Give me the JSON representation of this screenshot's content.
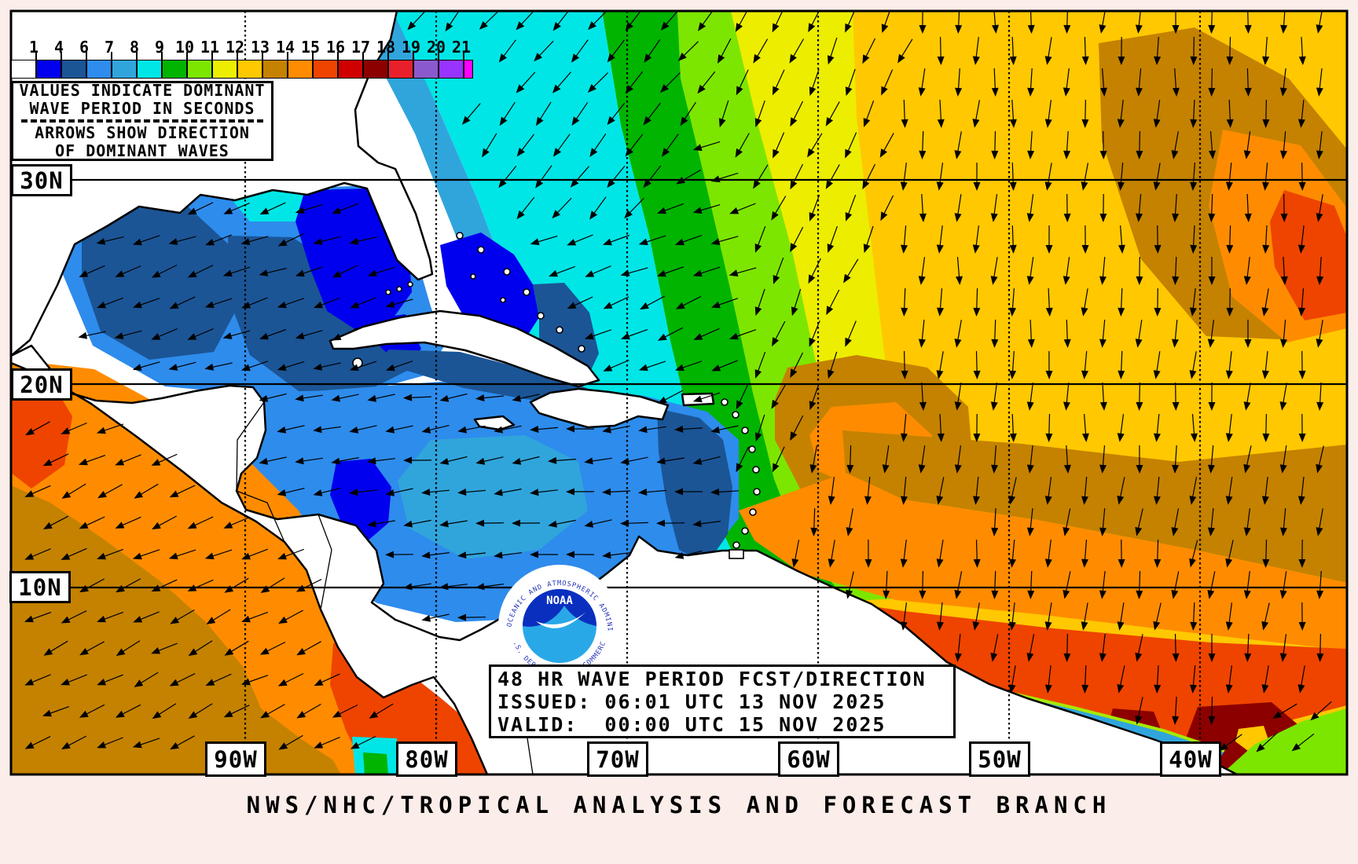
{
  "scale": {
    "values": [
      1,
      4,
      6,
      7,
      8,
      9,
      10,
      11,
      12,
      13,
      14,
      15,
      16,
      17,
      18,
      19,
      20,
      21
    ],
    "colors": [
      "#FFFFFF",
      "#0000EE",
      "#1B5596",
      "#2E8CEC",
      "#30A5DC",
      "#00E6E6",
      "#00B400",
      "#7DE600",
      "#EDED00",
      "#FFC800",
      "#C48200",
      "#FF8C00",
      "#EE4400",
      "#D00000",
      "#8C0000",
      "#E8202C",
      "#8A5ACC",
      "#9933FF"
    ],
    "overflow_color": "#FF00FF",
    "note": {
      "line1": "VALUES INDICATE DOMINANT",
      "line2": "WAVE PERIOD IN SECONDS",
      "line3": "ARROWS SHOW DIRECTION",
      "line4": "OF DOMINANT WAVES"
    }
  },
  "grid": {
    "lat_labels": [
      "30N",
      "20N",
      "10N"
    ],
    "lon_labels": [
      "90W",
      "80W",
      "70W",
      "60W",
      "50W",
      "40W"
    ]
  },
  "info_box": {
    "line1": "48 HR WAVE PERIOD FCST/DIRECTION",
    "line2": "ISSUED: 06:01 UTC 13 NOV 2025",
    "line3": "VALID:  00:00 UTC 15 NOV 2025"
  },
  "footer": {
    "title": "NWS/NHC/TROPICAL ANALYSIS AND FORECAST BRANCH"
  },
  "logo": {
    "acronym": "NOAA",
    "ring_top": "NATIONAL OCEANIC AND ATMOSPHERIC ADMINISTRATION",
    "ring_bottom": "U.S. DEPARTMENT OF COMMERCE"
  },
  "palette": {
    "white": "#FFFFFF",
    "blue": "#0000EE",
    "navy": "#1B5596",
    "dodger": "#2E8CEC",
    "steel": "#30A5DC",
    "cyan": "#00E6E6",
    "green": "#00B400",
    "chartreuse": "#7DE600",
    "yellow": "#EDED00",
    "gold": "#FFC800",
    "darkgold": "#C48200",
    "orange": "#FF8C00",
    "orangered": "#EE4400",
    "red": "#D00000",
    "darkred": "#8C0000",
    "crimson": "#E8202C",
    "purple": "#8A5ACC",
    "violet": "#9933FF",
    "magenta": "#FF00FF",
    "land": "#FFFFFF",
    "outline": "#000000",
    "page_bg": "#FBEDE9",
    "logo_dark": "#0A2FBF",
    "logo_light": "#29A8E8",
    "logo_text": "#2233BB",
    "fringe": "#A8E800"
  }
}
